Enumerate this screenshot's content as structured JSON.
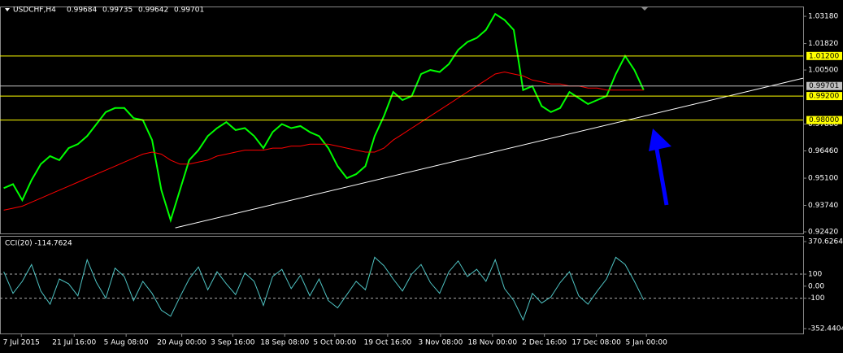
{
  "chart_data": [
    {
      "type": "line",
      "title": "USDCHF,H4",
      "ohlc": [
        "0.99684",
        "0.99735",
        "0.99642",
        "0.99701"
      ],
      "series": [
        {
          "name": "USDCHF",
          "color": "#00ff00",
          "values": [
            0.946,
            0.948,
            0.94,
            0.95,
            0.958,
            0.962,
            0.96,
            0.966,
            0.968,
            0.972,
            0.978,
            0.984,
            0.986,
            0.986,
            0.981,
            0.98,
            0.97,
            0.945,
            0.93,
            0.945,
            0.96,
            0.965,
            0.972,
            0.976,
            0.979,
            0.975,
            0.976,
            0.972,
            0.966,
            0.974,
            0.978,
            0.976,
            0.977,
            0.974,
            0.972,
            0.966,
            0.957,
            0.951,
            0.953,
            0.957,
            0.972,
            0.982,
            0.994,
            0.99,
            0.992,
            1.003,
            1.005,
            1.004,
            1.008,
            1.015,
            1.019,
            1.021,
            1.025,
            1.033,
            1.03,
            1.025,
            0.995,
            0.997,
            0.987,
            0.984,
            0.986,
            0.994,
            0.991,
            0.988,
            0.99,
            0.992,
            1.003,
            1.012,
            1.005,
            0.995
          ]
        },
        {
          "name": "MA",
          "color": "#ff0000",
          "values": [
            0.935,
            0.936,
            0.937,
            0.939,
            0.941,
            0.943,
            0.945,
            0.947,
            0.949,
            0.951,
            0.953,
            0.955,
            0.957,
            0.959,
            0.961,
            0.963,
            0.964,
            0.963,
            0.96,
            0.958,
            0.958,
            0.959,
            0.96,
            0.962,
            0.963,
            0.964,
            0.965,
            0.965,
            0.965,
            0.966,
            0.966,
            0.967,
            0.967,
            0.968,
            0.968,
            0.968,
            0.967,
            0.966,
            0.965,
            0.964,
            0.964,
            0.966,
            0.97,
            0.973,
            0.976,
            0.979,
            0.982,
            0.985,
            0.988,
            0.991,
            0.994,
            0.997,
            1.0,
            1.003,
            1.004,
            1.003,
            1.002,
            1.0,
            0.999,
            0.998,
            0.998,
            0.997,
            0.997,
            0.996,
            0.996,
            0.995,
            0.995,
            0.995,
            0.995,
            0.995
          ]
        }
      ],
      "xlim": [
        -0.4,
        86.2
      ],
      "ylim": [
        0.9234,
        1.0367
      ],
      "yticks": [
        {
          "value": 1.0318,
          "label": "1.03180"
        },
        {
          "value": 1.0182,
          "label": "1.01820"
        },
        {
          "value": 1.005,
          "label": "1.00500"
        },
        {
          "value": 0.978,
          "label": "0.97800"
        },
        {
          "value": 0.9646,
          "label": "0.96460"
        },
        {
          "value": 0.951,
          "label": "0.95100"
        },
        {
          "value": 0.9374,
          "label": "0.93740"
        },
        {
          "value": 0.9242,
          "label": "0.92420"
        }
      ],
      "levels": [
        {
          "value": 1.012,
          "label": "1.01200",
          "color": "#ffff00"
        },
        {
          "value": 0.992,
          "label": "0.99200",
          "color": "#ffff00"
        },
        {
          "value": 0.98,
          "label": "0.98000",
          "color": "#ffff00"
        },
        {
          "value": 0.99701,
          "label": "0.99701",
          "color": "#c0c0c0"
        }
      ],
      "trendline": {
        "x": [
          18.5,
          86.2
        ],
        "y": [
          0.9262,
          1.0009
        ],
        "color": "#ffffff"
      }
    },
    {
      "type": "line",
      "title": "CCI(20) -114.7624",
      "series": [
        {
          "name": "CCI(20)",
          "color": "#4fc3c3",
          "values": [
            120,
            -60,
            40,
            180,
            -40,
            -150,
            60,
            20,
            -80,
            220,
            30,
            -100,
            150,
            80,
            -120,
            40,
            -60,
            -200,
            -250,
            -90,
            60,
            160,
            -30,
            120,
            20,
            -70,
            110,
            40,
            -160,
            80,
            140,
            -20,
            90,
            -80,
            60,
            -120,
            -180,
            -70,
            40,
            -30,
            240,
            170,
            60,
            -40,
            100,
            180,
            30,
            -60,
            120,
            210,
            80,
            140,
            40,
            220,
            -20,
            -120,
            -280,
            -60,
            -140,
            -90,
            30,
            120,
            -80,
            -150,
            -40,
            60,
            240,
            180,
            40,
            -114.7624
          ]
        }
      ],
      "xlim": [
        -0.4,
        86.2
      ],
      "ylim": [
        -352.4404,
        370.6264
      ],
      "yticks": [
        370.6264,
        100,
        {
          "value": 0,
          "label": "0.00"
        },
        -100,
        -352.4404
      ],
      "dashed": [
        100,
        -100
      ],
      "xticks": [
        {
          "value": 1.9,
          "label": "7 Jul 2015"
        },
        {
          "value": 7.6,
          "label": "21 Jul 16:00"
        },
        {
          "value": 13.2,
          "label": "5 Aug 08:00"
        },
        {
          "value": 19.2,
          "label": "20 Aug 00:00"
        },
        {
          "value": 24.7,
          "label": "3 Sep 16:00"
        },
        {
          "value": 30.3,
          "label": "18 Sep 08:00"
        },
        {
          "value": 35.7,
          "label": "5 Oct 00:00"
        },
        {
          "value": 41.4,
          "label": "19 Oct 16:00"
        },
        {
          "value": 47.1,
          "label": "3 Nov 08:00"
        },
        {
          "value": 52.7,
          "label": "18 Nov 00:00"
        },
        {
          "value": 58.3,
          "label": "2 Dec 16:00"
        },
        {
          "value": 63.9,
          "label": "17 Dec 08:00"
        },
        {
          "value": 69.3,
          "label": "5 Jan 00:00"
        }
      ]
    }
  ]
}
